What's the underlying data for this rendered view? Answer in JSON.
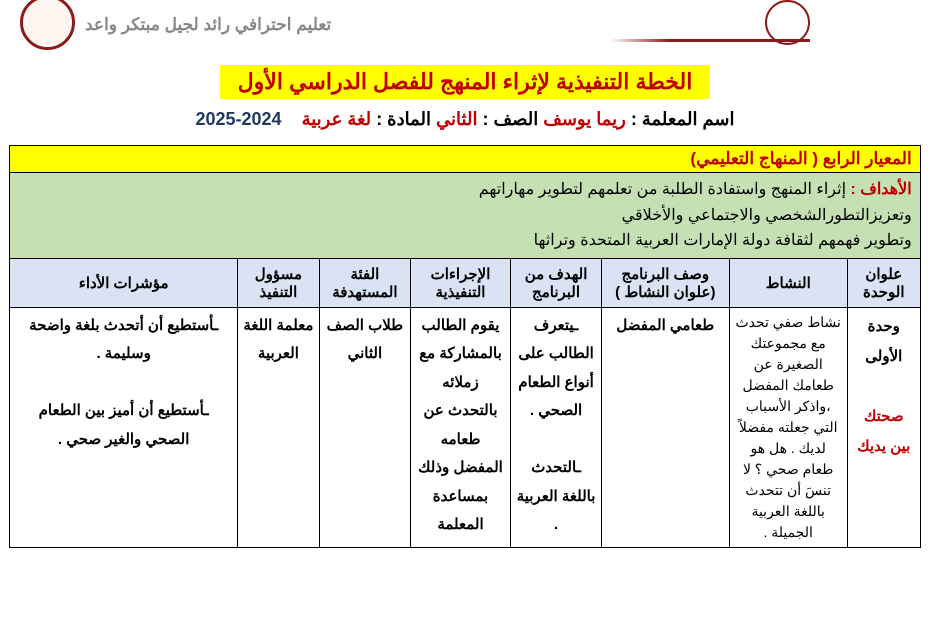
{
  "header": {
    "slogan": "تعليم احترافي رائد لجيل مبتكر واعد"
  },
  "title": "الخطة التنفيذية لإثراء المنهج للفصل الدراسي الأول",
  "info": {
    "teacher_label": "اسم المعلمة :",
    "teacher_name": "ريما يوسف",
    "grade_label": "الصف :",
    "grade_value": "الثاني",
    "subject_label": "المادة :",
    "subject_value": "لغة عربية",
    "year": "2024-2025"
  },
  "criterion": "المعيار الرابع ( المنهاج التعليمي)",
  "goals": {
    "label": "الأهداف :",
    "line1": "إثراء المنهج واستفادة الطلبة من تعلمهم لتطوير مهاراتهم",
    "line2": "وتعزيزالتطورالشخصي والاجتماعي والأخلاقي",
    "line3": "وتطوير فهمهم  لثقافة دولة الإمارات العربية المتحدة وتراثها"
  },
  "columns": {
    "unit": "علوان الوحدة",
    "activity": "النشاط",
    "desc": "وصف البرنامج (علوان النشاط )",
    "goal": "الهدف من البرنامج",
    "proc": "الإجراءات التنفيذية",
    "target": "الفئة المستهدفة",
    "resp": "مسؤول التنفيذ",
    "indic": "مؤشرات الأداء"
  },
  "row": {
    "unit_name": "وحدة الأولى",
    "unit_sub": "صحتك بين يديك",
    "activity": "نشاط صفي تحدث مع مجموعتك الصغيرة عن طعامك المفضل ،واذكر الأسباب التي جعلته مفضلاً لديك . هل هو طعام صحي ؟ لا تنسَ أن تتحدث باللغة العربية الجميلة .",
    "desc": "طعامي المفضل",
    "goal": "ـيتعرف الطالب على أنواع الطعام الصحي .\n\nـالتحدث باللغة العربية .",
    "proc": "يقوم الطالب بالمشاركة مع زملائه بالتحدث عن طعامه المفضل وذلك بمساعدة المعلمة",
    "target": "طلاب الصف الثاني",
    "resp": "معلمة اللغة العربية",
    "indic": "ـأستطيع أن أتحدث بلغة واضحة وسليمة .\n\nـأستطيع أن أميز بين الطعام الصحي والغير صحي ."
  }
}
